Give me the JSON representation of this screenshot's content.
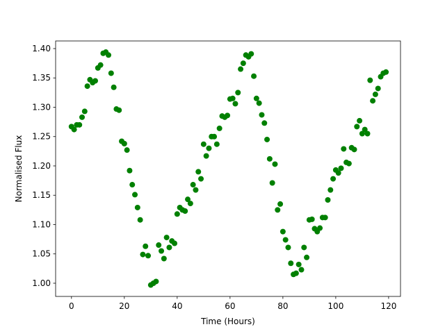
{
  "chart_data": {
    "type": "scatter",
    "xlabel": "Time (Hours)",
    "ylabel": "Normalised Flux",
    "color": "#008000",
    "x": [
      0,
      1,
      2,
      3,
      4,
      5,
      6,
      7,
      8,
      9,
      10,
      11,
      12,
      13,
      14,
      15,
      16,
      17,
      18,
      19,
      20,
      21,
      22,
      23,
      24,
      25,
      26,
      27,
      28,
      29,
      30,
      31,
      32,
      33,
      34,
      35,
      36,
      37,
      38,
      39,
      40,
      41,
      42,
      43,
      44,
      45,
      46,
      47,
      48,
      49,
      50,
      51,
      52,
      53,
      54,
      55,
      56,
      57,
      58,
      59,
      60,
      61,
      62,
      63,
      64,
      65,
      66,
      67,
      68,
      69,
      70,
      71,
      72,
      73,
      74,
      75,
      76,
      77,
      78,
      79,
      80,
      81,
      82,
      83,
      84,
      85,
      86,
      87,
      88,
      89,
      90,
      91,
      92,
      93,
      94,
      95,
      96,
      97,
      98,
      99,
      100,
      101,
      102,
      103,
      104,
      105,
      106,
      107,
      108,
      109,
      110,
      111,
      112,
      113,
      114,
      115,
      116,
      117,
      118,
      119
    ],
    "values": [
      1.267,
      1.262,
      1.27,
      1.27,
      1.283,
      1.293,
      1.336,
      1.347,
      1.342,
      1.345,
      1.367,
      1.372,
      1.392,
      1.394,
      1.389,
      1.358,
      1.334,
      1.297,
      1.295,
      1.242,
      1.238,
      1.227,
      1.192,
      1.168,
      1.151,
      1.129,
      1.108,
      1.049,
      1.063,
      1.047,
      0.997,
      1.0,
      1.003,
      1.065,
      1.055,
      1.042,
      1.078,
      1.061,
      1.072,
      1.068,
      1.118,
      1.129,
      1.125,
      1.123,
      1.143,
      1.136,
      1.168,
      1.159,
      1.19,
      1.178,
      1.237,
      1.217,
      1.23,
      1.25,
      1.25,
      1.237,
      1.264,
      1.285,
      1.283,
      1.286,
      1.314,
      1.315,
      1.306,
      1.325,
      1.365,
      1.375,
      1.389,
      1.386,
      1.391,
      1.353,
      1.315,
      1.307,
      1.287,
      1.273,
      1.245,
      1.212,
      1.171,
      1.203,
      1.125,
      1.135,
      1.088,
      1.074,
      1.061,
      1.034,
      1.015,
      1.017,
      1.032,
      1.023,
      1.061,
      1.044,
      1.108,
      1.109,
      1.093,
      1.088,
      1.094,
      1.112,
      1.112,
      1.142,
      1.159,
      1.178,
      1.193,
      1.188,
      1.196,
      1.229,
      1.206,
      1.204,
      1.231,
      1.228,
      1.267,
      1.277,
      1.255,
      1.262,
      1.255,
      1.346,
      1.311,
      1.322,
      1.332,
      1.352,
      1.358,
      1.36
    ],
    "xlim": [
      -6,
      124.5
    ],
    "ylim": [
      0.9775,
      1.413
    ],
    "xticks": [
      0,
      20,
      40,
      60,
      80,
      100,
      120
    ],
    "yticks": [
      {
        "value": 1,
        "label": "1.00"
      },
      1.05,
      {
        "value": 1.1,
        "label": "1.10"
      },
      1.15,
      {
        "value": 1.2,
        "label": "1.20"
      },
      1.25,
      {
        "value": 1.3,
        "label": "1.30"
      },
      1.35,
      {
        "value": 1.4,
        "label": "1.40"
      }
    ],
    "grid": false
  }
}
